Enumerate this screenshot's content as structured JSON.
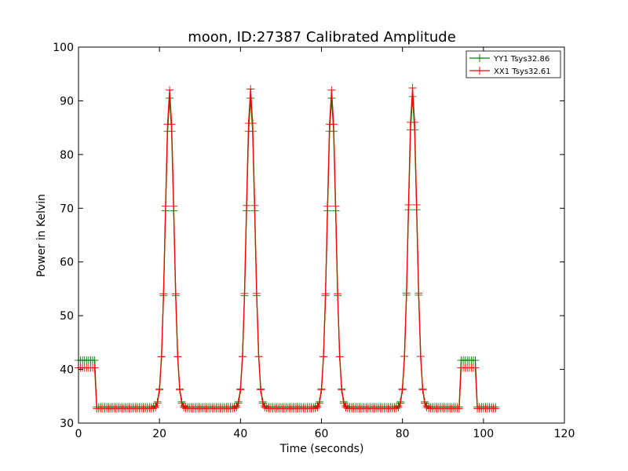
{
  "chart_data": {
    "type": "line",
    "title": "moon, ID:27387 Calibrated Amplitude",
    "xlabel": "Time (seconds)",
    "ylabel": "Power in Kelvin",
    "xlim": [
      0,
      120
    ],
    "ylim": [
      30,
      100
    ],
    "xticks": [
      "0",
      "20",
      "40",
      "60",
      "80",
      "100",
      "120"
    ],
    "yticks": [
      "30",
      "40",
      "50",
      "60",
      "70",
      "80",
      "90",
      "100"
    ],
    "grid": false,
    "legend_position": "top-right",
    "sample_interval": 0.5,
    "series": [
      {
        "name": "YY1 Tsys32.86",
        "color": "#008000",
        "marker": "+",
        "segments": [
          {
            "x_start": 0,
            "x_end": 4,
            "level": 41.7
          },
          {
            "x_start": 4.5,
            "x_end": 94,
            "baseline": 33.0,
            "peaks": [
              {
                "x": 22.5,
                "peak": 90.5,
                "width": 1.05
              },
              {
                "x": 42.5,
                "peak": 90.5,
                "width": 1.05
              },
              {
                "x": 62.5,
                "peak": 90.5,
                "width": 1.05
              },
              {
                "x": 82.5,
                "peak": 90.8,
                "width": 1.05
              }
            ]
          },
          {
            "x_start": 94.5,
            "x_end": 98,
            "level": 41.7
          },
          {
            "x_start": 98.5,
            "x_end": 103,
            "level": 33.0
          }
        ]
      },
      {
        "name": "XX1 Tsys32.61",
        "color": "#ff0000",
        "marker": "+",
        "segments": [
          {
            "x_start": 0,
            "x_end": 4,
            "level": 40.3
          },
          {
            "x_start": 4.5,
            "x_end": 94,
            "baseline": 32.7,
            "peaks": [
              {
                "x": 22.5,
                "peak": 92.0,
                "width": 1.05
              },
              {
                "x": 42.5,
                "peak": 92.2,
                "width": 1.05
              },
              {
                "x": 62.5,
                "peak": 92.0,
                "width": 1.05
              },
              {
                "x": 82.5,
                "peak": 92.4,
                "width": 1.05
              }
            ]
          },
          {
            "x_start": 94.5,
            "x_end": 98,
            "level": 40.3
          },
          {
            "x_start": 98.5,
            "x_end": 103,
            "level": 32.7
          }
        ]
      }
    ]
  }
}
